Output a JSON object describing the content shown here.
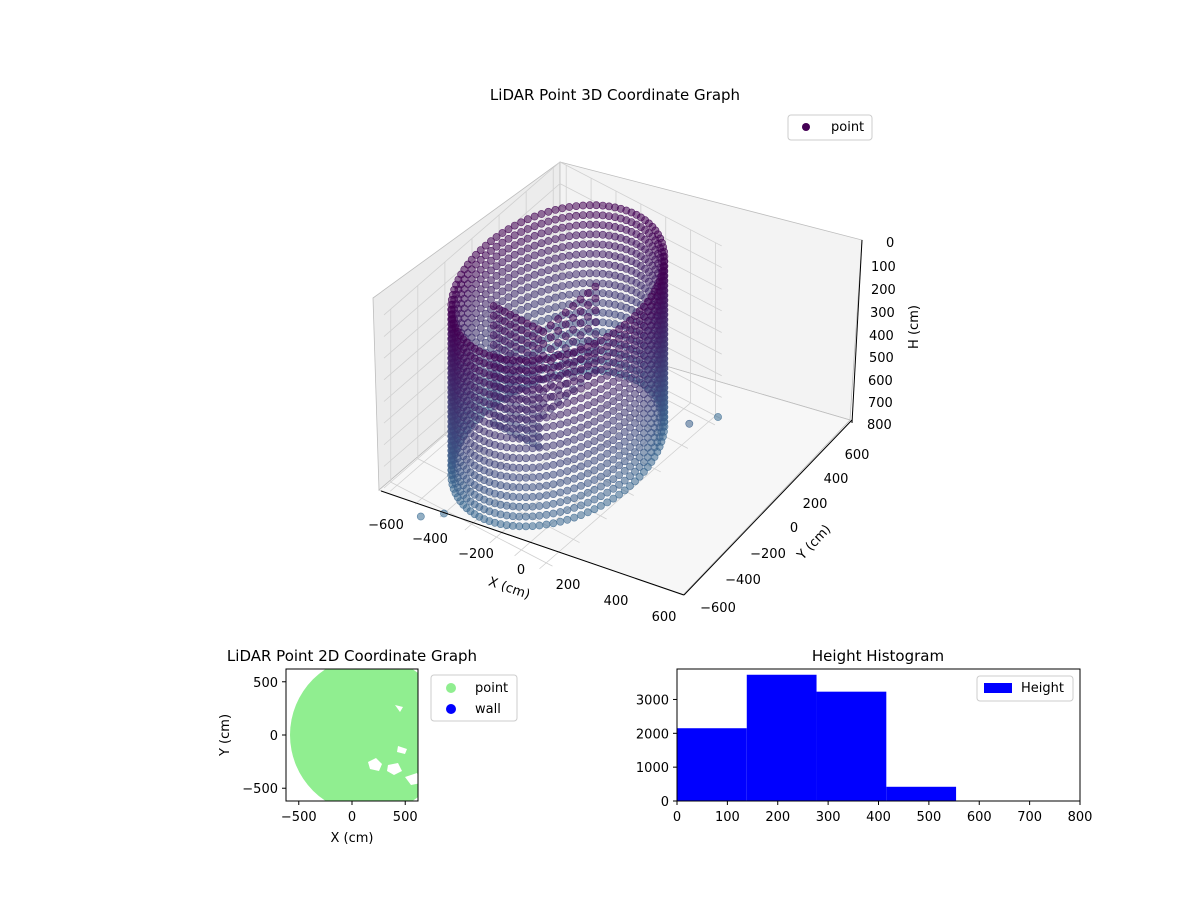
{
  "chart_data": [
    {
      "type": "scatter",
      "projection": "3d",
      "title": "LiDAR Point 3D Coordinate Graph",
      "xlabel": "X (cm)",
      "ylabel": "Y (cm)",
      "zlabel": "H (cm)",
      "xlim": [
        -650,
        650
      ],
      "ylim": [
        -650,
        650
      ],
      "zlim": [
        0,
        800
      ],
      "z_inverted": true,
      "x_ticks": [
        "−600",
        "−400",
        "−200",
        "0",
        "200",
        "400",
        "600"
      ],
      "y_ticks": [
        "−600",
        "−400",
        "−200",
        "0",
        "200",
        "400",
        "600"
      ],
      "z_ticks": [
        "0",
        "100",
        "200",
        "300",
        "400",
        "500",
        "600",
        "700",
        "800"
      ],
      "legend": {
        "labels": [
          "point"
        ],
        "position": "upper-right"
      },
      "colors": {
        "low": "#440154",
        "high": "#3b6d93",
        "pane": "#f2f2f2"
      },
      "series": [
        {
          "name": "point",
          "description": "cylindrical wall of points, radius ~580 cm, heights 0-800 cm, with an internal block structure",
          "shape": {
            "ring_radius": 580,
            "h_range": [
              0,
              800
            ]
          },
          "outliers": [
            {
              "x": -200,
              "y": -620,
              "h": 800
            },
            {
              "x": -300,
              "y": -700,
              "h": 800
            },
            {
              "x": 620,
              "y": 650,
              "h": 800
            },
            {
              "x": 640,
              "y": 420,
              "h": 700
            }
          ]
        }
      ]
    },
    {
      "type": "scatter",
      "title": "LiDAR Point 2D Coordinate Graph",
      "xlabel": "X (cm)",
      "ylabel": "Y (cm)",
      "xlim": [
        -620,
        620
      ],
      "ylim": [
        -620,
        620
      ],
      "x_ticks": [
        -500,
        0,
        500
      ],
      "y_ticks": [
        -500,
        0,
        500
      ],
      "legend": {
        "labels": [
          "point",
          "wall"
        ],
        "position": "outside-right"
      },
      "colors": {
        "point": "#90ee90",
        "wall": "#0000ff"
      },
      "series": [
        {
          "name": "point",
          "shape": "filled disk",
          "radius": 600,
          "center": [
            150,
            0
          ]
        },
        {
          "name": "wall",
          "values": []
        }
      ]
    },
    {
      "type": "bar",
      "subtype": "histogram",
      "title": "Height Histogram",
      "xlim": [
        0,
        800
      ],
      "ylim": [
        0,
        3900
      ],
      "x_ticks": [
        0,
        100,
        200,
        300,
        400,
        500,
        600,
        700,
        800
      ],
      "y_ticks": [
        0,
        1000,
        2000,
        3000
      ],
      "legend": {
        "labels": [
          "Height"
        ],
        "position": "upper-right"
      },
      "colors": {
        "bar": "#0000ff"
      },
      "series": [
        {
          "name": "Height",
          "bin_edges": [
            0,
            138.5,
            277,
            415.5,
            554,
            692.5,
            831
          ],
          "values": [
            2150,
            3730,
            3230,
            420,
            0,
            0
          ]
        }
      ]
    }
  ]
}
